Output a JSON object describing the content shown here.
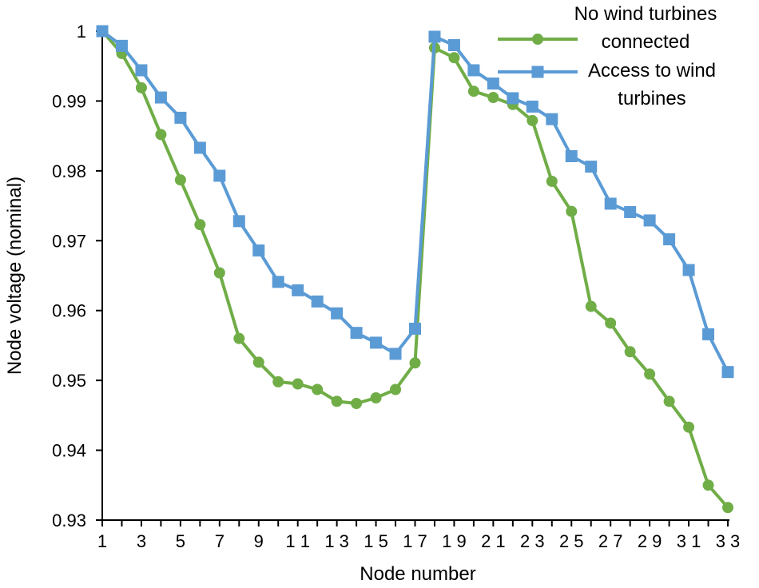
{
  "chart_data": {
    "type": "line",
    "title": "",
    "xlabel": "Node number",
    "ylabel": "Node voltage (nominal)",
    "x": [
      1,
      2,
      3,
      4,
      5,
      6,
      7,
      8,
      9,
      10,
      11,
      12,
      13,
      14,
      15,
      16,
      17,
      18,
      19,
      20,
      21,
      22,
      23,
      24,
      25,
      26,
      27,
      28,
      29,
      30,
      31,
      32,
      33
    ],
    "xlim": [
      1,
      33
    ],
    "ylim": [
      0.93,
      1.0
    ],
    "xticks": [
      1,
      3,
      5,
      7,
      9,
      11,
      13,
      15,
      17,
      19,
      21,
      23,
      25,
      27,
      29,
      31,
      33
    ],
    "xtick_labels": [
      "1",
      "3",
      "5",
      "7",
      "9",
      "1 1",
      "1 3",
      "1 5",
      "1 7",
      "1 9",
      "2 1",
      "2 3",
      "2 5",
      "2 7",
      "2 9",
      "3 1",
      "3 3"
    ],
    "yticks": [
      0.93,
      0.94,
      0.95,
      0.96,
      0.97,
      0.98,
      0.99,
      1.0
    ],
    "ytick_labels": [
      "0.93",
      "0.94",
      "0.95",
      "0.96",
      "0.97",
      "0.98",
      "0.99",
      "1"
    ],
    "grid": false,
    "legend_position": "top-right",
    "series": [
      {
        "name": "No wind turbines connected",
        "legend_lines": [
          "No wind turbines",
          "connected"
        ],
        "color": "#70ad47",
        "marker": "circle",
        "values": [
          1.0,
          0.9968,
          0.9919,
          0.9852,
          0.9787,
          0.9723,
          0.9654,
          0.956,
          0.9526,
          0.9498,
          0.9495,
          0.9487,
          0.947,
          0.9467,
          0.9475,
          0.9487,
          0.9525,
          0.9976,
          0.9962,
          0.9914,
          0.9905,
          0.9895,
          0.9872,
          0.9785,
          0.9742,
          0.9606,
          0.9582,
          0.9541,
          0.9509,
          0.947,
          0.9433,
          0.935,
          0.9318
        ]
      },
      {
        "name": "Access to wind turbines",
        "legend_lines": [
          "Access to wind",
          "turbines"
        ],
        "color": "#5b9bd5",
        "marker": "square",
        "values": [
          1.0,
          0.9979,
          0.9944,
          0.9905,
          0.9876,
          0.9833,
          0.9793,
          0.9728,
          0.9686,
          0.9641,
          0.9629,
          0.9613,
          0.9596,
          0.9568,
          0.9554,
          0.9538,
          0.9574,
          0.9992,
          0.998,
          0.9944,
          0.9925,
          0.9904,
          0.9892,
          0.9874,
          0.9821,
          0.9806,
          0.9753,
          0.9741,
          0.9729,
          0.9702,
          0.9658,
          0.9566,
          0.9512
        ]
      }
    ]
  }
}
